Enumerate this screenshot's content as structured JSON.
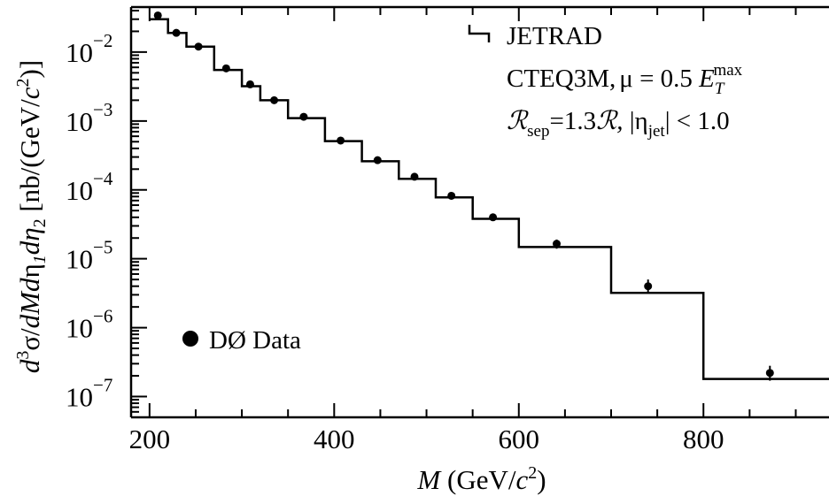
{
  "chart_data": {
    "type": "scatter",
    "y_scale": "log",
    "xlim": [
      180,
      936
    ],
    "ylim": [
      5e-08,
      0.045
    ],
    "x_ticks": [
      200,
      400,
      600,
      800
    ],
    "y_tick_decades": [
      -7,
      -6,
      -5,
      -4,
      -3,
      -2
    ],
    "y_tick_base": "10",
    "xlabel": {
      "var": "M",
      "rest": " (GeV/",
      "c": "c",
      "pow": "2",
      "close": ")"
    },
    "ylabel": {
      "d": "d",
      "three": "3",
      "sigma": "σ/",
      "dMd": "dMd",
      "eta1": "η",
      "one": "1",
      "deta": "dη",
      "two": "2",
      "unit": " [nb/(GeV/",
      "c": "c",
      "pow": "2",
      "close": ")]"
    },
    "grid": false,
    "legend_placement": "top-right",
    "series": [
      {
        "name": "JETRAD",
        "kind": "step",
        "bins": [
          {
            "x0": 200,
            "x1": 220,
            "y": 0.03
          },
          {
            "x0": 220,
            "x1": 240,
            "y": 0.019
          },
          {
            "x0": 240,
            "x1": 270,
            "y": 0.012
          },
          {
            "x0": 270,
            "x1": 300,
            "y": 0.0055
          },
          {
            "x0": 300,
            "x1": 320,
            "y": 0.0032
          },
          {
            "x0": 320,
            "x1": 350,
            "y": 0.002
          },
          {
            "x0": 350,
            "x1": 390,
            "y": 0.0011
          },
          {
            "x0": 390,
            "x1": 430,
            "y": 0.00051
          },
          {
            "x0": 430,
            "x1": 470,
            "y": 0.00026
          },
          {
            "x0": 470,
            "x1": 510,
            "y": 0.000145
          },
          {
            "x0": 510,
            "x1": 550,
            "y": 7.8e-05
          },
          {
            "x0": 550,
            "x1": 600,
            "y": 3.8e-05
          },
          {
            "x0": 600,
            "x1": 700,
            "y": 1.48e-05
          },
          {
            "x0": 700,
            "x1": 800,
            "y": 3.2e-06
          },
          {
            "x0": 800,
            "x1": 936,
            "y": 1.8e-07
          }
        ]
      },
      {
        "name": "DØ Data",
        "kind": "points",
        "points": [
          {
            "x": 209,
            "y": 0.034
          },
          {
            "x": 229,
            "y": 0.019
          },
          {
            "x": 253,
            "y": 0.012
          },
          {
            "x": 283,
            "y": 0.0058
          },
          {
            "x": 309,
            "y": 0.0034
          },
          {
            "x": 335,
            "y": 0.002
          },
          {
            "x": 367,
            "y": 0.00115
          },
          {
            "x": 407,
            "y": 0.00052
          },
          {
            "x": 447,
            "y": 0.00027
          },
          {
            "x": 487,
            "y": 0.000155
          },
          {
            "x": 527,
            "y": 8.2e-05
          },
          {
            "x": 572,
            "y": 4e-05
          },
          {
            "x": 641,
            "y": 1.65e-05,
            "err_low": 1.4e-05,
            "err_high": 1.9e-05
          },
          {
            "x": 740,
            "y": 4e-06,
            "err_low": 3.2e-06,
            "err_high": 5e-06
          },
          {
            "x": 872,
            "y": 2.2e-07,
            "err_low": 1.7e-07,
            "err_high": 2.8e-07
          }
        ]
      }
    ],
    "annotations": {
      "line1": {
        "a": "CTEQ3M,",
        "b": "μ",
        "c": " = 0.5 ",
        "d": "E",
        "e": "T",
        "f": "max"
      },
      "line2": {
        "a": "ℛ",
        "b": "sep",
        "c": "=1.3",
        "d": "ℛ,",
        "e": "  |η",
        "f": "jet",
        "g": "| < 1.0"
      }
    }
  }
}
